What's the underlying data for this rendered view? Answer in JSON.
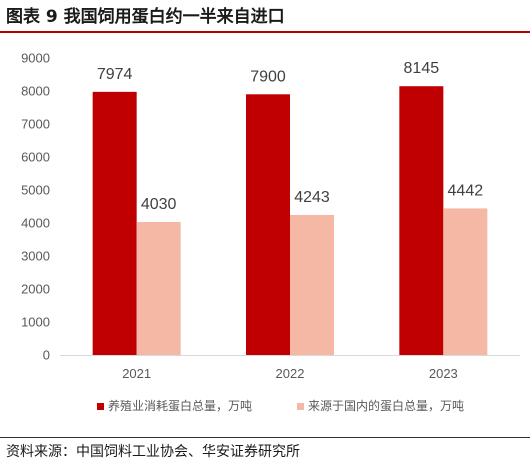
{
  "title": "图表 9 我国饲用蛋白约一半来自进口",
  "source": "资料来源：中国饲料工业协会、华安证券研究所",
  "colors": {
    "series1": "#c00000",
    "series2": "#f4b8a4",
    "axis": "#d9d9d9",
    "text": "#595959",
    "rule": "#b00000"
  },
  "chart_data": {
    "type": "bar",
    "categories": [
      "2021",
      "2022",
      "2023"
    ],
    "series": [
      {
        "name": "养殖业消耗蛋白总量，万吨",
        "values": [
          7974,
          7900,
          8145
        ],
        "color": "#c00000"
      },
      {
        "name": "来源于国内的蛋白总量，万吨",
        "values": [
          4030,
          4243,
          4442
        ],
        "color": "#f4b8a4"
      }
    ],
    "yticks": [
      "0",
      "1000",
      "2000",
      "3000",
      "4000",
      "5000",
      "6000",
      "7000",
      "8000",
      "9000"
    ],
    "ylim": [
      0,
      9000
    ],
    "grid": false,
    "legend": "bottom"
  }
}
